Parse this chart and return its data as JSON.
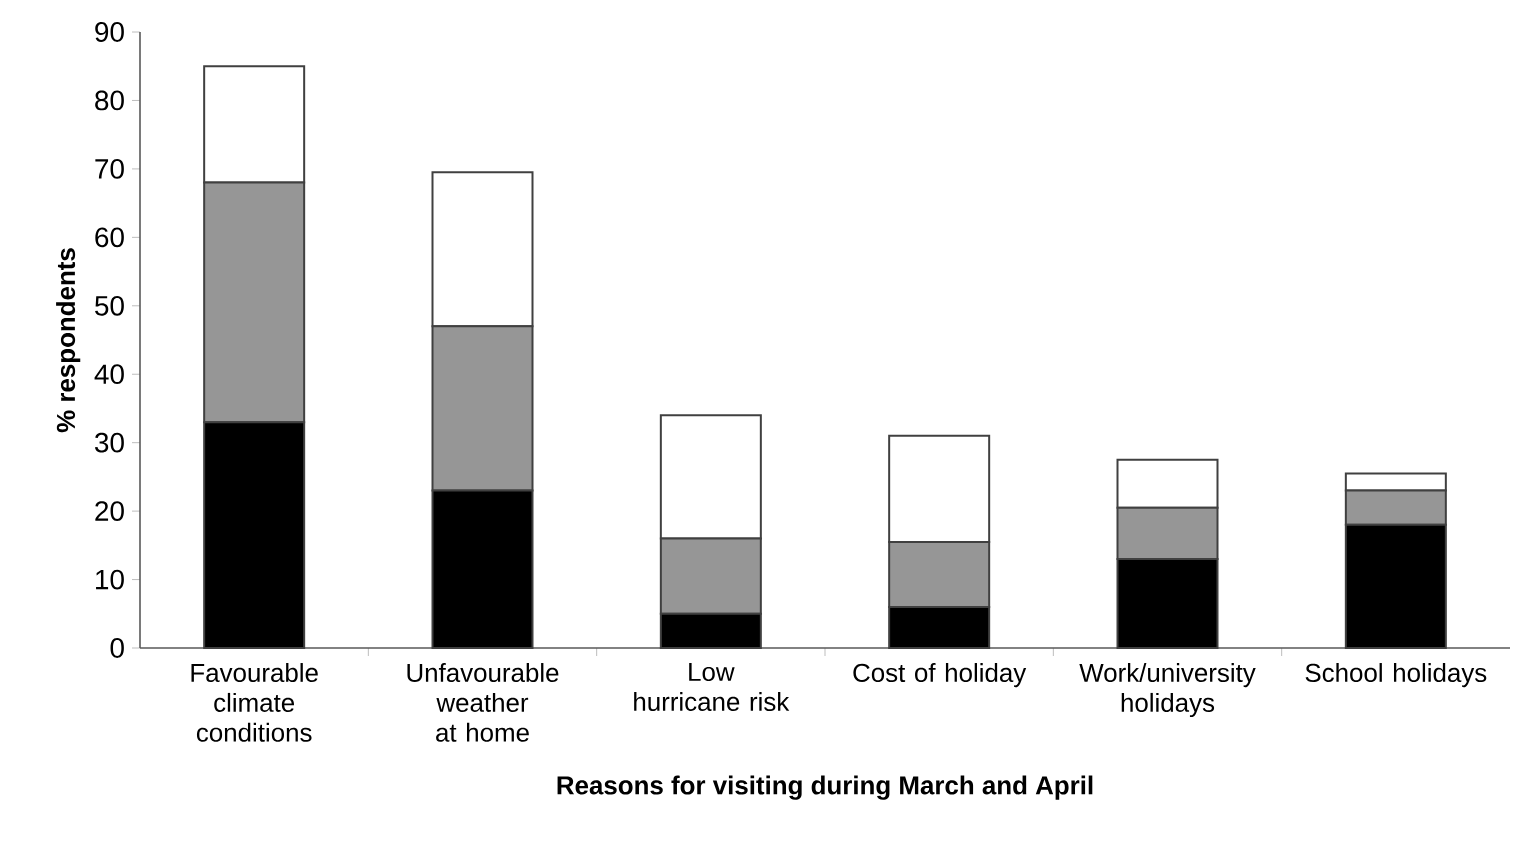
{
  "chart_data": {
    "type": "bar",
    "stacked": true,
    "xlabel": "Reasons for visiting during March and April",
    "ylabel": "% respondents",
    "categories": [
      "Favourable climate conditions",
      "Unfavourable weather at home",
      "Low hurricane risk",
      "Cost of holiday",
      "Work/university holidays",
      "School holidays"
    ],
    "series": [
      {
        "color": "#000000",
        "values": [
          33,
          23,
          5,
          6,
          13,
          18
        ]
      },
      {
        "color": "#969696",
        "values": [
          35,
          24,
          11,
          9.5,
          7.5,
          5
        ]
      },
      {
        "color": "#ffffff",
        "values": [
          17,
          22.5,
          18,
          15.5,
          7,
          2.5
        ]
      }
    ],
    "ylim": [
      0,
      90
    ],
    "yticks": [
      0,
      10,
      20,
      30,
      40,
      50,
      60,
      70,
      80,
      90
    ]
  }
}
